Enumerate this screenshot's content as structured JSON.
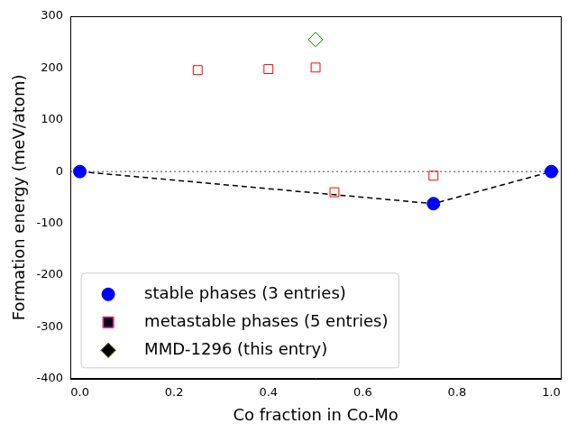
{
  "chart_data": {
    "type": "scatter",
    "x_label": "Co fraction in Co-Mo",
    "y_label": "Formation energy (meV/atom)",
    "xlim": [
      -0.02,
      1.02
    ],
    "xticks": [
      {
        "value": 0,
        "label": "0.0"
      },
      {
        "value": 0.2,
        "label": "0.2"
      },
      {
        "value": 0.4,
        "label": "0.4"
      },
      {
        "value": 0.6,
        "label": "0.6"
      },
      {
        "value": 0.8,
        "label": "0.8"
      },
      {
        "value": 1,
        "label": "1.0"
      }
    ],
    "ylim": [
      -400,
      300
    ],
    "yticks": [
      -400,
      -300,
      -200,
      -100,
      0,
      100,
      200,
      300
    ],
    "grid": false,
    "legend": "lower left",
    "reference_line": 0,
    "series": [
      {
        "name": "stable phases (3 entries)",
        "color": "#0000ff",
        "marker": "filled_circle",
        "line_style": "dashed",
        "x": [
          0,
          0.75,
          1
        ],
        "values": [
          0,
          -62,
          0
        ]
      },
      {
        "name": "metastable phases (5 entries)",
        "color": "#ff0000",
        "marker": "open_square",
        "x": [
          0.25,
          0.4,
          0.5,
          0.54,
          0.75
        ],
        "values": [
          196,
          198,
          201,
          -40,
          -8
        ]
      },
      {
        "name": "MMD-1296 (this entry)",
        "color": "#008000",
        "marker": "open_diamond",
        "x": [
          0.5
        ],
        "values": [
          255
        ]
      }
    ]
  }
}
